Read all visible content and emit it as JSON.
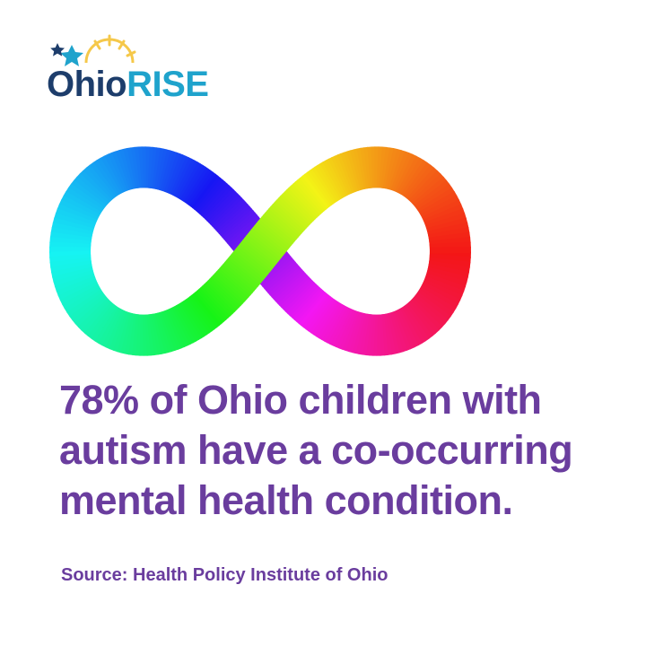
{
  "logo": {
    "part1": "Ohio",
    "part2": "RISE"
  },
  "headline": {
    "lines": [
      "78% of Ohio children with",
      "autism have a co-occurring",
      "mental health condition."
    ]
  },
  "source": "Source: Health Policy Institute of Ohio"
}
